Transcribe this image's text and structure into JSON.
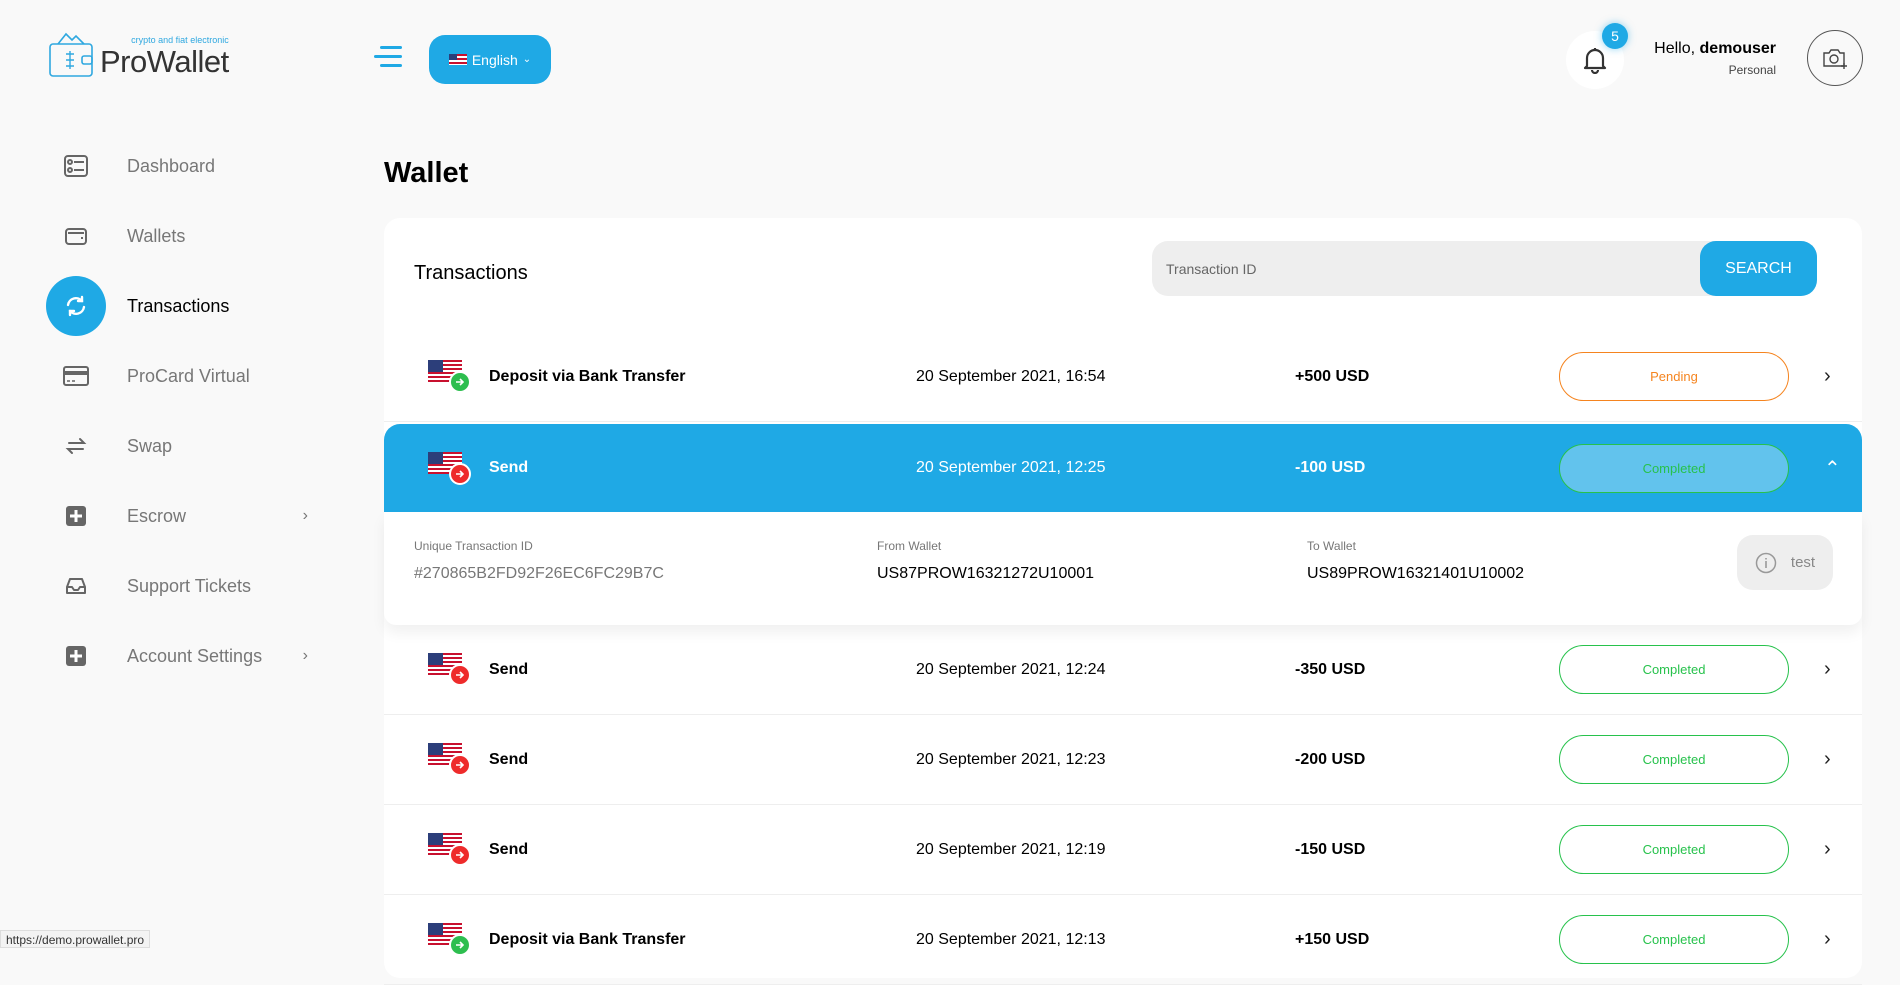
{
  "brand": {
    "name": "ProWallet",
    "tagline": "crypto and fiat electronic"
  },
  "header": {
    "language": "English",
    "notifications_count": "5",
    "greeting": "Hello,",
    "username": "demouser",
    "account_type": "Personal"
  },
  "sidebar": {
    "items": [
      {
        "label": "Dashboard",
        "icon": "dashboard-icon"
      },
      {
        "label": "Wallets",
        "icon": "wallet-icon"
      },
      {
        "label": "Transactions",
        "icon": "refresh-icon",
        "active": true
      },
      {
        "label": "ProCard Virtual",
        "icon": "credit-card-icon"
      },
      {
        "label": "Swap",
        "icon": "swap-icon"
      },
      {
        "label": "Escrow",
        "icon": "plus-square-icon",
        "has_submenu": true
      },
      {
        "label": "Support Tickets",
        "icon": "inbox-icon"
      },
      {
        "label": "Account Settings",
        "icon": "plus-square-icon",
        "has_submenu": true
      }
    ]
  },
  "page": {
    "title": "Wallet",
    "section_title": "Transactions",
    "search_placeholder": "Transaction ID",
    "search_button": "SEARCH"
  },
  "transactions": [
    {
      "title": "Deposit via Bank Transfer",
      "date": "20 September 2021, 16:54",
      "amount": "+500 USD",
      "status": "Pending",
      "type": "deposit"
    },
    {
      "title": "Send",
      "date": "20 September 2021, 12:25",
      "amount": "-100 USD",
      "status": "Completed",
      "type": "send",
      "expanded": true
    },
    {
      "title": "Send",
      "date": "20 September 2021, 12:24",
      "amount": "-350 USD",
      "status": "Completed",
      "type": "send"
    },
    {
      "title": "Send",
      "date": "20 September 2021, 12:23",
      "amount": "-200 USD",
      "status": "Completed",
      "type": "send"
    },
    {
      "title": "Send",
      "date": "20 September 2021, 12:19",
      "amount": "-150 USD",
      "status": "Completed",
      "type": "send"
    },
    {
      "title": "Deposit via Bank Transfer",
      "date": "20 September 2021, 12:13",
      "amount": "+150 USD",
      "status": "Completed",
      "type": "deposit"
    }
  ],
  "detail": {
    "id_label": "Unique Transaction ID",
    "id_value": "#270865B2FD92F26EC6FC29B7C",
    "from_label": "From Wallet",
    "from_value": "US87PROW16321272U10001",
    "to_label": "To Wallet",
    "to_value": "US89PROW16321401U10002",
    "note": "test"
  },
  "statusbar": {
    "url": "https://demo.prowallet.pro"
  },
  "colors": {
    "accent": "#1fa9e5",
    "pending": "#f5841f",
    "completed": "#27c24c",
    "send": "#ee2b2b",
    "deposit": "#2dbe4f"
  }
}
